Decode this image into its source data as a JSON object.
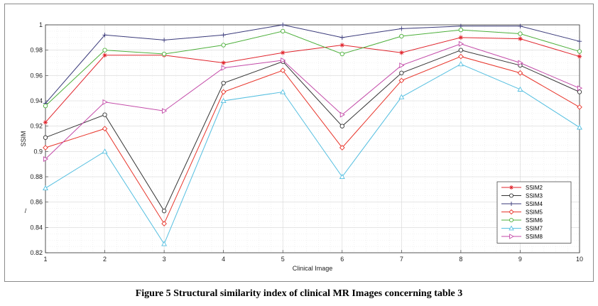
{
  "caption": "Figure 5 Structural similarity index of clinical MR Images concerning table 3",
  "chart_data": {
    "type": "line",
    "title": "",
    "xlabel": "Clinical Image",
    "ylabel": "SSIM",
    "side_mark": "/",
    "x": [
      1,
      2,
      3,
      4,
      5,
      6,
      7,
      8,
      9,
      10
    ],
    "xlim": [
      1,
      10
    ],
    "ylim": [
      0.82,
      1.0
    ],
    "yticks": [
      0.82,
      0.84,
      0.86,
      0.88,
      0.9,
      0.92,
      0.94,
      0.96,
      0.98,
      1
    ],
    "ytick_labels": [
      "0.82",
      "0.84",
      "0.86",
      "0.88",
      "0.9",
      "0.92",
      "0.94",
      "0.96",
      "0.98",
      "1"
    ],
    "grid": true,
    "legend_position": "bottom-right",
    "series": [
      {
        "name": "SSIM2",
        "color": "#e0232b",
        "marker": "star",
        "values": [
          0.923,
          0.976,
          0.976,
          0.97,
          0.978,
          0.984,
          0.978,
          0.99,
          0.989,
          0.975
        ]
      },
      {
        "name": "SSIM3",
        "color": "#333333",
        "marker": "circle",
        "values": [
          0.911,
          0.929,
          0.853,
          0.954,
          0.971,
          0.92,
          0.962,
          0.98,
          0.968,
          0.947
        ]
      },
      {
        "name": "SSIM4",
        "color": "#3a3a7a",
        "marker": "plus",
        "values": [
          0.938,
          0.992,
          0.988,
          0.992,
          1.0,
          0.99,
          0.997,
          0.999,
          0.999,
          0.987
        ]
      },
      {
        "name": "SSIM5",
        "color": "#e8352b",
        "marker": "diamond",
        "values": [
          0.903,
          0.918,
          0.843,
          0.947,
          0.964,
          0.903,
          0.956,
          0.975,
          0.962,
          0.935
        ]
      },
      {
        "name": "SSIM6",
        "color": "#4caf3a",
        "marker": "circle",
        "values": [
          0.936,
          0.98,
          0.977,
          0.984,
          0.995,
          0.977,
          0.991,
          0.996,
          0.993,
          0.979
        ]
      },
      {
        "name": "SSIM7",
        "color": "#55bfe0",
        "marker": "triangle-up",
        "values": [
          0.871,
          0.9,
          0.827,
          0.94,
          0.947,
          0.88,
          0.943,
          0.969,
          0.949,
          0.919
        ]
      },
      {
        "name": "SSIM8",
        "color": "#c34aa8",
        "marker": "triangle-right",
        "values": [
          0.894,
          0.939,
          0.932,
          0.966,
          0.972,
          0.929,
          0.968,
          0.985,
          0.97,
          0.95
        ]
      }
    ]
  }
}
